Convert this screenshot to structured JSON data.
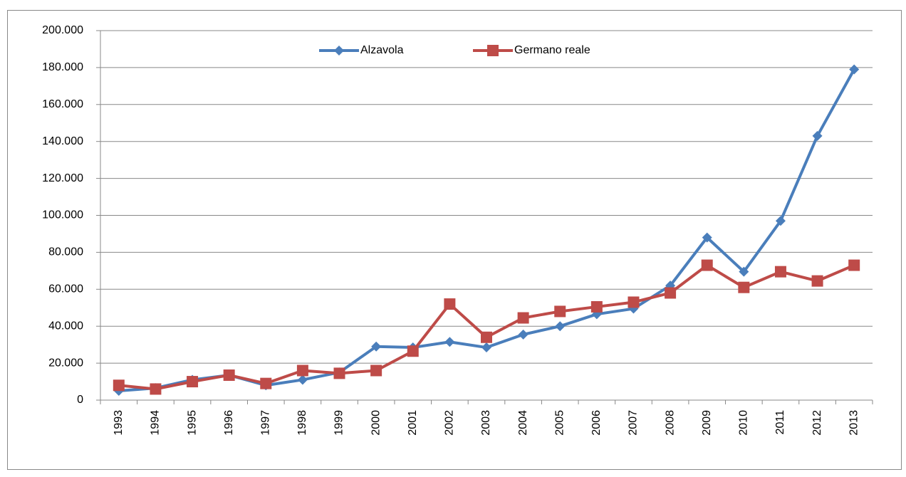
{
  "chart_data": {
    "type": "line",
    "categories": [
      "1993",
      "1994",
      "1995",
      "1996",
      "1997",
      "1998",
      "1999",
      "2000",
      "2001",
      "2002",
      "2003",
      "2004",
      "2005",
      "2006",
      "2007",
      "2008",
      "2009",
      "2010",
      "2011",
      "2012",
      "2013"
    ],
    "series": [
      {
        "name": "Alzavola",
        "color": "#4a7ebb",
        "marker": "diamond",
        "values": [
          5000,
          6500,
          11000,
          13500,
          8000,
          11000,
          15000,
          29000,
          28500,
          31500,
          28500,
          35500,
          40000,
          46500,
          49500,
          62000,
          88000,
          69500,
          97000,
          143000,
          179000
        ]
      },
      {
        "name": "Germano reale",
        "color": "#be4b48",
        "marker": "square",
        "values": [
          8000,
          6000,
          10000,
          13500,
          9000,
          16000,
          14500,
          16000,
          26500,
          52000,
          34000,
          44500,
          48000,
          50500,
          53000,
          58000,
          73000,
          61000,
          69500,
          64500,
          73000
        ]
      }
    ],
    "ylim": [
      0,
      200000
    ],
    "yticks": [
      0,
      {
        "value": 20000,
        "label": "20.000"
      },
      {
        "value": 40000,
        "label": "40.000"
      },
      {
        "value": 60000,
        "label": "60.000"
      },
      {
        "value": 80000,
        "label": "80.000"
      },
      {
        "value": 100000,
        "label": "100.000"
      },
      {
        "value": 120000,
        "label": "120.000"
      },
      {
        "value": 140000,
        "label": "140.000"
      },
      {
        "value": 160000,
        "label": "160.000"
      },
      {
        "value": 180000,
        "label": "180.000"
      },
      {
        "value": 200000,
        "label": "200.000"
      }
    ],
    "grid": true,
    "legend": "top"
  }
}
